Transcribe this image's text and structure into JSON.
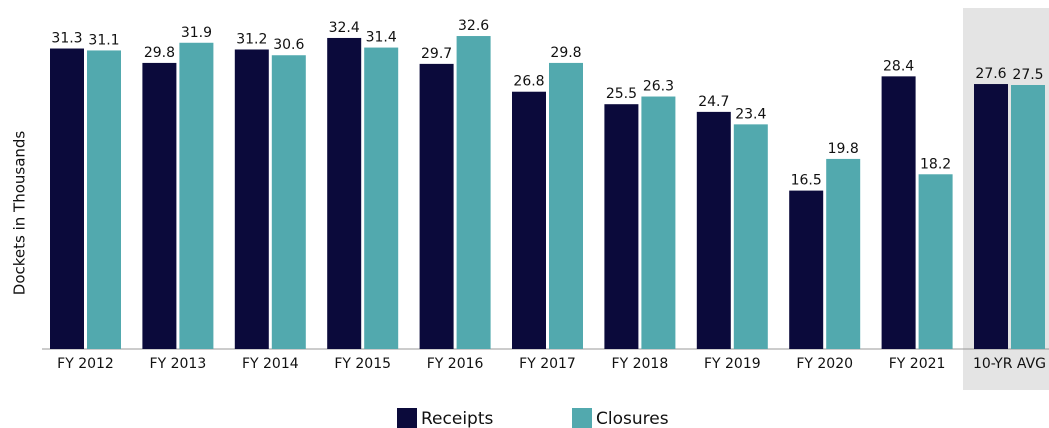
{
  "chart_data": {
    "type": "bar",
    "y_label": "Dockets in Thousands",
    "categories": [
      "FY 2012",
      "FY 2013",
      "FY 2014",
      "FY 2015",
      "FY 2016",
      "FY 2017",
      "FY 2018",
      "FY 2019",
      "FY 2020",
      "FY 2021",
      "10-YR AVG"
    ],
    "series": [
      {
        "name": "Receipts",
        "color": "#0b0a3b",
        "values": [
          31.3,
          29.8,
          31.2,
          32.4,
          29.7,
          26.8,
          25.5,
          24.7,
          16.5,
          28.4,
          27.6
        ]
      },
      {
        "name": "Closures",
        "color": "#52a9ae",
        "values": [
          31.1,
          31.9,
          30.6,
          31.4,
          32.6,
          29.8,
          26.3,
          23.4,
          19.8,
          18.2,
          27.5
        ]
      }
    ],
    "ylim": [
      0,
      35
    ]
  }
}
